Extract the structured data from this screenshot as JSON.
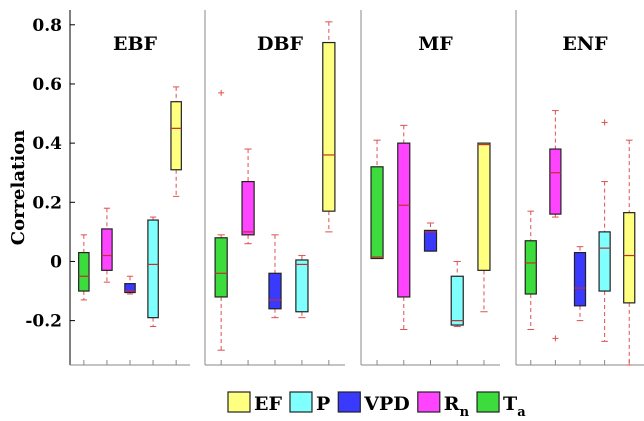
{
  "chart_data": {
    "type": "box",
    "ylabel": "Correlation",
    "ylim": [
      -0.35,
      0.85
    ],
    "yticks": [
      -0.2,
      0,
      0.2,
      0.4,
      0.6,
      0.8
    ],
    "ytick_labels": [
      "-0.2",
      "0",
      "0.2",
      "0.4",
      "0.6",
      "0.8"
    ],
    "legend_position": "bottom",
    "series": [
      {
        "name": "EF",
        "color": "#ffff80"
      },
      {
        "name": "P",
        "color": "#80ffff"
      },
      {
        "name": "VPD",
        "color": "#3a3aff"
      },
      {
        "name": "R",
        "subscript": "n",
        "color": "#ff44ff"
      },
      {
        "name": "T",
        "subscript": "a",
        "color": "#3ddc3d"
      }
    ],
    "panels": [
      {
        "title": "EBF",
        "boxes": [
          {
            "series": "Ta",
            "whisker_low": -0.13,
            "q1": -0.1,
            "median": -0.05,
            "q3": 0.03,
            "whisker_high": 0.09,
            "outliers": []
          },
          {
            "series": "Rn",
            "whisker_low": -0.07,
            "q1": -0.03,
            "median": 0.02,
            "q3": 0.11,
            "whisker_high": 0.18,
            "outliers": []
          },
          {
            "series": "VPD",
            "whisker_low": -0.11,
            "q1": -0.105,
            "median": -0.1,
            "q3": -0.075,
            "whisker_high": -0.05,
            "outliers": []
          },
          {
            "series": "P",
            "whisker_low": -0.22,
            "q1": -0.19,
            "median": -0.01,
            "q3": 0.14,
            "whisker_high": 0.15,
            "outliers": []
          },
          {
            "series": "EF",
            "whisker_low": 0.22,
            "q1": 0.31,
            "median": 0.45,
            "q3": 0.54,
            "whisker_high": 0.59,
            "outliers": []
          }
        ]
      },
      {
        "title": "DBF",
        "boxes": [
          {
            "series": "Ta",
            "whisker_low": -0.3,
            "q1": -0.12,
            "median": -0.04,
            "q3": 0.08,
            "whisker_high": 0.09,
            "outliers": [
              0.57
            ]
          },
          {
            "series": "Rn",
            "whisker_low": 0.06,
            "q1": 0.09,
            "median": 0.1,
            "q3": 0.27,
            "whisker_high": 0.38,
            "outliers": []
          },
          {
            "series": "VPD",
            "whisker_low": -0.19,
            "q1": -0.16,
            "median": -0.13,
            "q3": -0.04,
            "whisker_high": 0.09,
            "outliers": []
          },
          {
            "series": "P",
            "whisker_low": -0.19,
            "q1": -0.17,
            "median": -0.01,
            "q3": 0.005,
            "whisker_high": 0.02,
            "outliers": []
          },
          {
            "series": "EF",
            "whisker_low": 0.1,
            "q1": 0.17,
            "median": 0.36,
            "q3": 0.74,
            "whisker_high": 0.81,
            "outliers": []
          }
        ]
      },
      {
        "title": "MF",
        "boxes": [
          {
            "series": "Ta",
            "whisker_low": 0.01,
            "q1": 0.01,
            "median": 0.015,
            "q3": 0.32,
            "whisker_high": 0.41,
            "outliers": []
          },
          {
            "series": "Rn",
            "whisker_low": -0.23,
            "q1": -0.12,
            "median": 0.19,
            "q3": 0.4,
            "whisker_high": 0.46,
            "outliers": []
          },
          {
            "series": "VPD",
            "whisker_low": 0.035,
            "q1": 0.035,
            "median": 0.1,
            "q3": 0.105,
            "whisker_high": 0.13,
            "outliers": []
          },
          {
            "series": "P",
            "whisker_low": -0.22,
            "q1": -0.215,
            "median": -0.2,
            "q3": -0.05,
            "whisker_high": 0.0,
            "outliers": []
          },
          {
            "series": "EF",
            "whisker_low": -0.17,
            "q1": -0.03,
            "median": 0.395,
            "q3": 0.4,
            "whisker_high": 0.4,
            "outliers": []
          }
        ]
      },
      {
        "title": "ENF",
        "boxes": [
          {
            "series": "Ta",
            "whisker_low": -0.23,
            "q1": -0.11,
            "median": -0.005,
            "q3": 0.07,
            "whisker_high": 0.17,
            "outliers": []
          },
          {
            "series": "Rn",
            "whisker_low": 0.15,
            "q1": 0.16,
            "median": 0.3,
            "q3": 0.38,
            "whisker_high": 0.51,
            "outliers": [
              -0.26
            ]
          },
          {
            "series": "VPD",
            "whisker_low": -0.2,
            "q1": -0.15,
            "median": -0.09,
            "q3": 0.03,
            "whisker_high": 0.05,
            "outliers": []
          },
          {
            "series": "P",
            "whisker_low": -0.27,
            "q1": -0.1,
            "median": 0.045,
            "q3": 0.1,
            "whisker_high": 0.27,
            "outliers": [
              0.47
            ]
          },
          {
            "series": "EF",
            "whisker_low": -0.35,
            "q1": -0.14,
            "median": 0.02,
            "q3": 0.165,
            "whisker_high": 0.41,
            "outliers": []
          }
        ]
      }
    ]
  }
}
